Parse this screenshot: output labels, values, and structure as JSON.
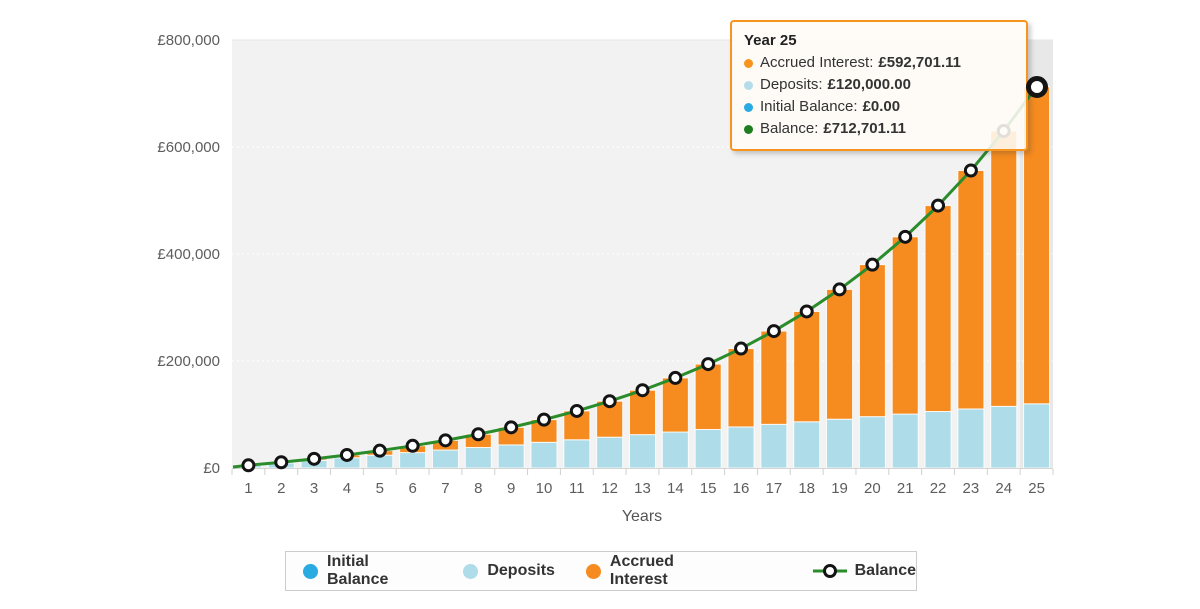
{
  "axes": {
    "y": {
      "ticks": [
        "£0",
        "£200,000",
        "£400,000",
        "£600,000",
        "£800,000"
      ],
      "max": 800000,
      "tick_step": 200000
    },
    "x": {
      "title": "Years"
    }
  },
  "tooltip": {
    "title": "Year 25",
    "rows": [
      {
        "label": "Accrued Interest:",
        "value": "£592,701.11",
        "color": "#f7941e"
      },
      {
        "label": "Deposits:",
        "value": "£120,000.00",
        "color": "#b5dce9"
      },
      {
        "label": "Initial Balance:",
        "value": "£0.00",
        "color": "#29abe2"
      },
      {
        "label": "Balance:",
        "value": "£712,701.11",
        "color": "#1e7d1e"
      }
    ],
    "border_color": "#f7941e"
  },
  "legend": {
    "items": [
      {
        "label": "Initial Balance",
        "color": "#29abe2",
        "icon": "dot"
      },
      {
        "label": "Deposits",
        "color": "#aedce9",
        "icon": "dot"
      },
      {
        "label": "Accrued Interest",
        "color": "#f68b1f",
        "icon": "dot"
      },
      {
        "label": "Balance",
        "color": "#2a8c2a",
        "icon": "line-marker"
      }
    ]
  },
  "chart_data": {
    "type": "bar",
    "subtype": "stacked-bars-with-line-overlay",
    "categories": [
      1,
      2,
      3,
      4,
      5,
      6,
      7,
      8,
      9,
      10,
      11,
      12,
      13,
      14,
      15,
      16,
      17,
      18,
      19,
      20,
      21,
      22,
      23,
      24,
      25
    ],
    "xlabel": "Years",
    "ylabel": "",
    "ylim": [
      0,
      800000
    ],
    "grid": "dashed horizontal lines every 200000",
    "legend_position": "bottom",
    "series": [
      {
        "name": "Initial Balance",
        "type": "bar-stack",
        "color": "#29abe2",
        "values": [
          0,
          0,
          0,
          0,
          0,
          0,
          0,
          0,
          0,
          0,
          0,
          0,
          0,
          0,
          0,
          0,
          0,
          0,
          0,
          0,
          0,
          0,
          0,
          0,
          0
        ]
      },
      {
        "name": "Deposits",
        "type": "bar-stack",
        "color": "#aedce9",
        "values": [
          4800,
          9600,
          14400,
          19200,
          24000,
          28800,
          33600,
          38400,
          43200,
          48000,
          52800,
          57600,
          62400,
          67200,
          72000,
          76800,
          81600,
          86400,
          91200,
          96000,
          100800,
          105600,
          110400,
          115200,
          120000
        ]
      },
      {
        "name": "Accrued Interest",
        "type": "bar-stack",
        "color": "#f68b1f",
        "values": [
          266,
          1157,
          2752,
          5136,
          8407,
          12674,
          18062,
          24707,
          32765,
          42411,
          53841,
          67271,
          82955,
          101169,
          122224,
          146472,
          174311,
          206187,
          242591,
          284074,
          331258,
          384861,
          445689,
          514619,
          592701.11
        ]
      },
      {
        "name": "Balance",
        "type": "line",
        "color": "#2a8c2a",
        "marker": "black-ring-white-fill",
        "values": [
          5066,
          10757,
          17152,
          24336,
          32407,
          41474,
          51662,
          63107,
          75965,
          90411,
          106641,
          124871,
          145355,
          168369,
          194224,
          223272,
          255911,
          292587,
          333791,
          380074,
          432058,
          490461,
          556089,
          629819,
          712701.11
        ]
      }
    ],
    "hover": {
      "category": 25,
      "highlighted_series_point": "Balance year 25"
    }
  },
  "colors": {
    "plot_background": "#f2f2f2",
    "axis_line": "#d4d4d4",
    "gridline": "#fbfbfb",
    "tick_text": "#5d5d5d",
    "line_marker_stroke": "#141414"
  }
}
